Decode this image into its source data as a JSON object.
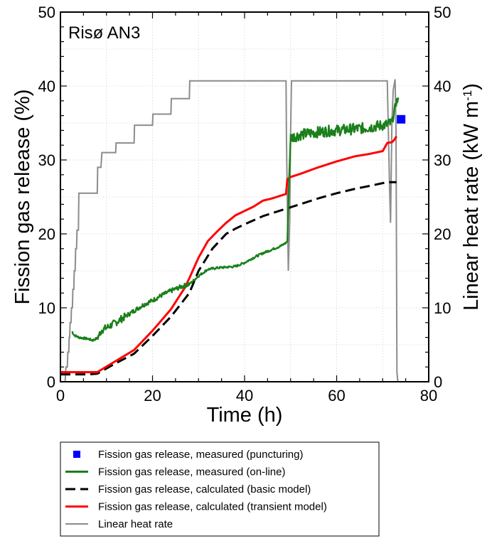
{
  "chart_data": {
    "type": "line",
    "annotation": "Risø AN3",
    "xlabel": "Time (h)",
    "ylabel_left": "Fission gas release (%)",
    "ylabel_right_main": "Linear heat rate (kW m",
    "ylabel_right_sup": "-1",
    "ylabel_right_close": ")",
    "xlim": [
      0,
      80
    ],
    "ylim_left": [
      0,
      50
    ],
    "ylim_right": [
      0,
      50
    ],
    "xticks": [
      "0",
      "20",
      "40",
      "60",
      "80"
    ],
    "yticks_left": [
      "0",
      "10",
      "20",
      "30",
      "40",
      "50"
    ],
    "yticks_right": [
      "0",
      "10",
      "20",
      "30",
      "40",
      "50"
    ],
    "grid": true,
    "legend_position": "below",
    "colors": {
      "measured_puncturing": "#0000ff",
      "measured_online": "#1a7f1a",
      "calculated_basic": "#000000",
      "calculated_transient": "#ff0000",
      "linear_heat_rate": "#8c8c8c"
    },
    "series": [
      {
        "name": "Fission gas release, measured (puncturing)",
        "style": "marker",
        "x": [
          74
        ],
        "y": [
          35.5
        ]
      },
      {
        "name": "Fission gas release, measured (on-line)",
        "style": "noisy-line",
        "x": [
          2.5,
          3,
          4,
          5,
          6,
          7,
          8,
          9,
          10,
          12,
          14,
          16,
          18,
          20,
          22,
          24,
          26,
          28,
          30,
          32,
          34,
          36,
          38,
          40,
          42,
          44,
          46,
          48,
          49,
          49.3,
          49.6,
          50,
          52,
          55,
          58,
          60,
          62,
          64,
          66,
          68,
          70,
          71,
          72,
          72.5,
          73,
          73.5
        ],
        "y": [
          6.8,
          6.3,
          6.0,
          5.9,
          5.8,
          5.6,
          5.9,
          7.0,
          7.3,
          8.0,
          8.8,
          9.6,
          10.4,
          11.0,
          11.7,
          12.3,
          12.8,
          13.2,
          14.3,
          15.2,
          15.4,
          15.5,
          15.6,
          16.1,
          16.8,
          17.4,
          17.9,
          18.4,
          18.8,
          19.0,
          26.0,
          33.0,
          33.4,
          33.7,
          33.9,
          34.0,
          34.1,
          34.2,
          34.3,
          34.5,
          34.7,
          34.8,
          35.0,
          36.5,
          38.0,
          38.0
        ]
      },
      {
        "name": "Fission gas release, calculated (basic model)",
        "style": "dashed",
        "x": [
          0,
          3,
          6,
          8,
          12,
          16,
          20,
          24,
          28,
          30,
          33,
          36,
          38,
          40,
          44,
          48,
          52,
          56,
          60,
          64,
          68,
          71,
          73
        ],
        "y": [
          1.0,
          1.0,
          1.0,
          1.1,
          2.5,
          3.8,
          6.2,
          8.8,
          12.0,
          15.0,
          18.0,
          20.0,
          20.7,
          21.3,
          22.4,
          23.2,
          24.0,
          24.8,
          25.5,
          26.1,
          26.6,
          27.0,
          27.0
        ]
      },
      {
        "name": "Fission gas release, calculated (transient model)",
        "style": "solid",
        "x": [
          0,
          4,
          8,
          12,
          16,
          20,
          24,
          27,
          28,
          30,
          32,
          34,
          36,
          38,
          42,
          44,
          46,
          49,
          49.3,
          50,
          52,
          56,
          60,
          64,
          67,
          70,
          71,
          72,
          72.5,
          73
        ],
        "y": [
          1.3,
          1.3,
          1.3,
          2.8,
          4.3,
          6.9,
          9.8,
          12.7,
          14.0,
          16.8,
          19.0,
          20.3,
          21.5,
          22.5,
          23.7,
          24.5,
          24.8,
          25.4,
          27.4,
          27.7,
          28.1,
          29.0,
          29.8,
          30.5,
          30.8,
          31.2,
          32.3,
          32.4,
          32.7,
          33.2
        ]
      },
      {
        "name": "Linear heat rate",
        "style": "step",
        "axis": "right",
        "x": [
          0.5,
          1.0,
          1.2,
          1.5,
          1.6,
          1.8,
          1.9,
          2.0,
          2.1,
          2.3,
          2.4,
          2.6,
          2.7,
          2.9,
          3.0,
          3.2,
          3.3,
          3.5,
          3.6,
          3.9,
          4.0,
          8.0,
          8.1,
          8.8,
          9.0,
          12.0,
          12.1,
          16.0,
          16.1,
          20.0,
          20.1,
          24.0,
          24.1,
          28.0,
          28.1,
          49.0,
          49.1,
          49.5,
          49.8,
          50.0,
          50.2,
          50.5,
          71.0,
          71.2,
          71.5,
          71.7,
          72.0,
          72.3,
          72.7,
          72.9,
          73.1,
          73.3
        ],
        "y": [
          0,
          0,
          2.0,
          2.0,
          4.0,
          4.0,
          6.0,
          6.0,
          8.0,
          8.0,
          10.0,
          10.0,
          12.5,
          12.5,
          15.0,
          15.0,
          18.0,
          18.0,
          20.5,
          20.5,
          25.5,
          25.5,
          29.0,
          29.0,
          31.0,
          31.0,
          32.3,
          32.3,
          34.7,
          34.7,
          36.2,
          36.2,
          38.3,
          38.3,
          40.7,
          40.7,
          33.0,
          15.0,
          22.0,
          34.0,
          40.7,
          40.7,
          40.7,
          35.0,
          26.0,
          21.5,
          35.0,
          39.5,
          40.9,
          34.0,
          1.3,
          0
        ]
      }
    ]
  }
}
